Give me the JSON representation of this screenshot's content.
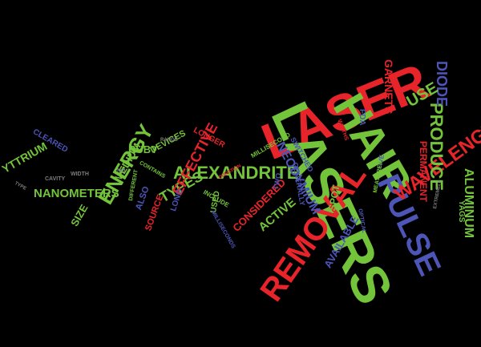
{
  "words": {
    "laser": "LASER",
    "lasers": "LASERS",
    "hair": "HAIR",
    "removal": "REMOVAL",
    "pulse": "PULSE",
    "wavelength": "WAVELENGTH",
    "produce": "PRODUCE",
    "diode": "DIODE",
    "use": "USE",
    "garnets": "GARNETS",
    "aluminum": "ALUMINUM",
    "alexandrite": "ALEXANDRITE",
    "neodymium": "NEODYMIUM",
    "energy": "ENERGY",
    "nanometers": "NANOMETERS",
    "yttrium": "YTTRIUM",
    "types": "TYPES",
    "effective": "EFFECTIVE",
    "ruby": "RUBY",
    "medium": "MEDIUM",
    "devices": "DEVICES",
    "longer": "LONGER",
    "active": "ACTIVE",
    "considered": "CONSIDERED",
    "available": "AVAILABLE",
    "spot": "SPOT",
    "permanent": "PERMANENT",
    "yags": "YAGS",
    "fda": "FDA",
    "size": "SIZE",
    "source": "SOURCE",
    "also": "ALSO",
    "cleared": "CLEARED",
    "long": "LONG",
    "used": "USED",
    "two": "TWO",
    "five": "FIVE",
    "include": "INCLUDE",
    "millisecond": "MILLISECOND",
    "milliseconds": "MILLISECONDS",
    "switched": "SWITCHED",
    "generally": "GENERALLY",
    "measured": "MEASURED",
    "optical": "OPTICAL",
    "contains": "CONTAINS",
    "different": "DIFFERENT",
    "width": "WIDTH",
    "cavity": "CAVITY",
    "type": "TYPE",
    "widths": "WIDTHS",
    "no": "NO",
    "duration": "DURATION",
    "extremely": "EXTREMELY",
    "range": "RANGE"
  },
  "colors": {
    "background": "#000000",
    "red": "#e8242b",
    "green": "#73c43a",
    "blue": "#4d55b7",
    "gray": "#7d7d7d"
  }
}
